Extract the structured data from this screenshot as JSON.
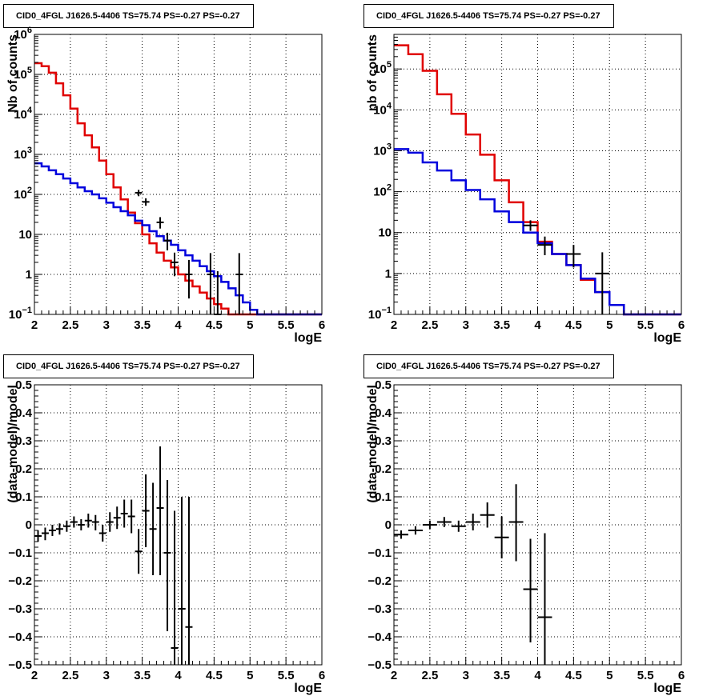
{
  "chart_data": [
    {
      "type": "line",
      "title": "CID0_4FGL J1626.5-4406 TS=75.74 PS=-0.27 PS=-0.27",
      "xlabel": "logE",
      "ylabel": "Nb of counts",
      "xlim": [
        2,
        6
      ],
      "ylim": [
        0.1,
        1000000
      ],
      "log_y": true,
      "grid": true,
      "x_ticks": [
        "2",
        "2.5",
        "3",
        "3.5",
        "4",
        "4.5",
        "5",
        "5.5",
        "6"
      ],
      "y_ticks": [
        {
          "value": 0.1,
          "base": "10",
          "exp": "−1"
        },
        {
          "value": 1,
          "label": "1"
        },
        {
          "value": 10,
          "label": "10"
        },
        {
          "value": 100,
          "base": "10",
          "exp": "2"
        },
        {
          "value": 1000,
          "base": "10",
          "exp": "3"
        },
        {
          "value": 10000,
          "base": "10",
          "exp": "4"
        },
        {
          "value": 100000,
          "base": "10",
          "exp": "5"
        },
        {
          "value": 1000000,
          "base": "10",
          "exp": "6"
        }
      ],
      "bin_edges": [
        2.0,
        2.1,
        2.2,
        2.3,
        2.4,
        2.5,
        2.6,
        2.7,
        2.8,
        2.9,
        3.0,
        3.1,
        3.2,
        3.3,
        3.4,
        3.5,
        3.6,
        3.7,
        3.8,
        3.9,
        4.0,
        4.1,
        4.2,
        4.3,
        4.4,
        4.5,
        4.6,
        4.7,
        4.8,
        4.9,
        5.0,
        5.1,
        5.2,
        5.3,
        5.4,
        5.5,
        5.6,
        5.7,
        5.8,
        5.9,
        6.0
      ],
      "series": [
        {
          "color": "#e00000",
          "style": "step",
          "values": [
            190000,
            160000,
            110000,
            60000,
            30000,
            14000,
            6000,
            3000,
            1500,
            700,
            320,
            150,
            75,
            35,
            19,
            10,
            6,
            3.5,
            2.2,
            1.5,
            1.0,
            0.7,
            0.5,
            0.35,
            0.25,
            0.18,
            0.14,
            0.1,
            0.1,
            0.1,
            0.1,
            0.1,
            0.1,
            0.1,
            0.1,
            0.1,
            0.1,
            0.1,
            0.1,
            0.1
          ]
        },
        {
          "color": "#0000dd",
          "style": "step",
          "values": [
            600,
            500,
            400,
            320,
            250,
            190,
            150,
            120,
            100,
            80,
            62,
            48,
            38,
            30,
            22,
            17,
            12,
            9,
            7,
            5.5,
            4,
            3,
            2.2,
            1.6,
            1.2,
            0.9,
            0.65,
            0.45,
            0.3,
            0.2,
            0.13,
            0.1,
            0.1,
            0.1,
            0.1,
            0.1,
            0.1,
            0.1,
            0.1,
            0.1
          ]
        },
        {
          "color": "#000000",
          "style": "errorbar",
          "points": [
            {
              "x": 3.45,
              "y": 110,
              "lo": 90,
              "hi": 130
            },
            {
              "x": 3.55,
              "y": 65,
              "lo": 52,
              "hi": 80
            },
            {
              "x": 3.75,
              "y": 20,
              "lo": 14,
              "hi": 27
            },
            {
              "x": 3.85,
              "y": 7,
              "lo": 4,
              "hi": 11
            },
            {
              "x": 3.95,
              "y": 2,
              "lo": 0.9,
              "hi": 3.5
            },
            {
              "x": 4.15,
              "y": 1,
              "lo": 0.25,
              "hi": 2.3
            },
            {
              "x": 4.45,
              "y": 1,
              "lo": 0.1,
              "hi": 3.4
            },
            {
              "x": 4.55,
              "y": 0.1,
              "lo": 0.1,
              "hi": 1.2
            },
            {
              "x": 4.85,
              "y": 1,
              "lo": 0.1,
              "hi": 3.4
            }
          ]
        }
      ]
    },
    {
      "type": "line",
      "title": "CID0_4FGL J1626.5-4406 TS=75.74 PS=-0.27 PS=-0.27",
      "xlabel": "logE",
      "ylabel": "nb of counts",
      "xlim": [
        2,
        6
      ],
      "ylim": [
        0.1,
        700000
      ],
      "log_y": true,
      "grid": true,
      "x_ticks": [
        "2",
        "2.5",
        "3",
        "3.5",
        "4",
        "4.5",
        "5",
        "5.5",
        "6"
      ],
      "y_ticks": [
        {
          "value": 0.1,
          "base": "10",
          "exp": "−1"
        },
        {
          "value": 1,
          "label": "1"
        },
        {
          "value": 10,
          "label": "10"
        },
        {
          "value": 100,
          "base": "10",
          "exp": "2"
        },
        {
          "value": 1000,
          "base": "10",
          "exp": "3"
        },
        {
          "value": 10000,
          "base": "10",
          "exp": "4"
        },
        {
          "value": 100000,
          "base": "10",
          "exp": "5"
        }
      ],
      "bin_edges": [
        2.0,
        2.2,
        2.4,
        2.6,
        2.8,
        3.0,
        3.2,
        3.4,
        3.6,
        3.8,
        4.0,
        4.2,
        4.4,
        4.6,
        4.8,
        5.0,
        5.2,
        5.4,
        5.6,
        5.8,
        6.0
      ],
      "series": [
        {
          "color": "#e00000",
          "style": "step",
          "values": [
            380000,
            230000,
            90000,
            24000,
            8000,
            2500,
            800,
            190,
            55,
            18,
            6,
            3,
            1.6,
            0.7,
            0.35,
            0.17,
            0.1,
            0.1,
            0.1,
            0.1
          ]
        },
        {
          "color": "#0000dd",
          "style": "step",
          "values": [
            1100,
            900,
            520,
            330,
            190,
            110,
            65,
            33,
            18,
            10,
            5.5,
            3,
            1.6,
            0.75,
            0.35,
            0.17,
            0.1,
            0.1,
            0.1,
            0.1
          ]
        },
        {
          "color": "#000000",
          "style": "errorbar",
          "points": [
            {
              "x": 3.9,
              "y": 15,
              "lo": 11,
              "hi": 20
            },
            {
              "x": 4.1,
              "y": 5,
              "lo": 2.8,
              "hi": 8
            },
            {
              "x": 4.5,
              "y": 3,
              "lo": 1.4,
              "hi": 5
            },
            {
              "x": 4.9,
              "y": 1,
              "lo": 0.1,
              "hi": 3.3
            }
          ]
        }
      ]
    },
    {
      "type": "scatter",
      "title": "CID0_4FGL J1626.5-4406 TS=75.74 PS=-0.27 PS=-0.27",
      "xlabel": "logE",
      "ylabel": "(data-model)/model",
      "xlim": [
        2,
        6
      ],
      "ylim": [
        -0.5,
        0.5
      ],
      "log_y": false,
      "grid": true,
      "x_ticks": [
        "2",
        "2.5",
        "3",
        "3.5",
        "4",
        "4.5",
        "5",
        "5.5",
        "6"
      ],
      "y_ticks": [
        {
          "value": -0.5,
          "label": "−0.5"
        },
        {
          "value": -0.4,
          "label": "−0.4"
        },
        {
          "value": -0.3,
          "label": "−0.3"
        },
        {
          "value": -0.2,
          "label": "−0.2"
        },
        {
          "value": -0.1,
          "label": "−0.1"
        },
        {
          "value": 0,
          "label": "0"
        },
        {
          "value": 0.1,
          "label": "0.1"
        },
        {
          "value": 0.2,
          "label": "0.2"
        },
        {
          "value": 0.3,
          "label": "0.3"
        },
        {
          "value": 0.4,
          "label": "0.4"
        },
        {
          "value": 0.5,
          "label": "0.5"
        }
      ],
      "series": [
        {
          "color": "#000000",
          "style": "errorbar",
          "xerr": 0.05,
          "points": [
            {
              "x": 2.05,
              "y": -0.04,
              "lo": -0.06,
              "hi": -0.02
            },
            {
              "x": 2.15,
              "y": -0.03,
              "lo": -0.055,
              "hi": -0.01
            },
            {
              "x": 2.25,
              "y": -0.02,
              "lo": -0.04,
              "hi": 0.0
            },
            {
              "x": 2.35,
              "y": -0.015,
              "lo": -0.035,
              "hi": 0.005
            },
            {
              "x": 2.45,
              "y": -0.005,
              "lo": -0.025,
              "hi": 0.015
            },
            {
              "x": 2.55,
              "y": 0.01,
              "lo": -0.01,
              "hi": 0.03
            },
            {
              "x": 2.65,
              "y": 0.0,
              "lo": -0.02,
              "hi": 0.02
            },
            {
              "x": 2.75,
              "y": 0.015,
              "lo": -0.01,
              "hi": 0.04
            },
            {
              "x": 2.85,
              "y": 0.01,
              "lo": -0.02,
              "hi": 0.035
            },
            {
              "x": 2.95,
              "y": -0.03,
              "lo": -0.06,
              "hi": 0.0
            },
            {
              "x": 3.05,
              "y": 0.01,
              "lo": -0.025,
              "hi": 0.045
            },
            {
              "x": 3.15,
              "y": 0.025,
              "lo": -0.015,
              "hi": 0.065
            },
            {
              "x": 3.25,
              "y": 0.04,
              "lo": -0.01,
              "hi": 0.09
            },
            {
              "x": 3.35,
              "y": 0.03,
              "lo": -0.03,
              "hi": 0.09
            },
            {
              "x": 3.45,
              "y": -0.095,
              "lo": -0.175,
              "hi": -0.015
            },
            {
              "x": 3.55,
              "y": 0.05,
              "lo": -0.08,
              "hi": 0.18
            },
            {
              "x": 3.65,
              "y": -0.015,
              "lo": -0.18,
              "hi": 0.15
            },
            {
              "x": 3.75,
              "y": 0.06,
              "lo": -0.18,
              "hi": 0.28
            },
            {
              "x": 3.85,
              "y": -0.1,
              "lo": -0.38,
              "hi": 0.16
            },
            {
              "x": 3.95,
              "y": -0.44,
              "lo": -0.5,
              "hi": 0.05
            },
            {
              "x": 4.05,
              "y": -0.3,
              "lo": -0.5,
              "hi": 0.1
            },
            {
              "x": 4.15,
              "y": -0.365,
              "lo": -0.5,
              "hi": 0.1
            }
          ]
        }
      ]
    },
    {
      "type": "scatter",
      "title": "CID0_4FGL J1626.5-4406 TS=75.74 PS=-0.27 PS=-0.27",
      "xlabel": "logE",
      "ylabel": "(data-model)/model",
      "xlim": [
        2,
        6
      ],
      "ylim": [
        -0.5,
        0.5
      ],
      "log_y": false,
      "grid": true,
      "x_ticks": [
        "2",
        "2.5",
        "3",
        "3.5",
        "4",
        "4.5",
        "5",
        "5.5",
        "6"
      ],
      "y_ticks": [
        {
          "value": -0.5,
          "label": "−0.5"
        },
        {
          "value": -0.4,
          "label": "−0.4"
        },
        {
          "value": -0.3,
          "label": "−0.3"
        },
        {
          "value": -0.2,
          "label": "−0.2"
        },
        {
          "value": -0.1,
          "label": "−0.1"
        },
        {
          "value": 0,
          "label": "0"
        },
        {
          "value": 0.1,
          "label": "0.1"
        },
        {
          "value": 0.2,
          "label": "0.2"
        },
        {
          "value": 0.3,
          "label": "0.3"
        },
        {
          "value": 0.4,
          "label": "0.4"
        },
        {
          "value": 0.5,
          "label": "0.5"
        }
      ],
      "series": [
        {
          "color": "#000000",
          "style": "errorbar",
          "xerr": 0.1,
          "points": [
            {
              "x": 2.1,
              "y": -0.035,
              "lo": -0.05,
              "hi": -0.02
            },
            {
              "x": 2.3,
              "y": -0.02,
              "lo": -0.035,
              "hi": -0.005
            },
            {
              "x": 2.5,
              "y": 0.0,
              "lo": -0.015,
              "hi": 0.015
            },
            {
              "x": 2.7,
              "y": 0.01,
              "lo": -0.008,
              "hi": 0.028
            },
            {
              "x": 2.9,
              "y": -0.005,
              "lo": -0.025,
              "hi": 0.015
            },
            {
              "x": 3.1,
              "y": 0.01,
              "lo": -0.02,
              "hi": 0.04
            },
            {
              "x": 3.3,
              "y": 0.035,
              "lo": -0.01,
              "hi": 0.08
            },
            {
              "x": 3.5,
              "y": -0.045,
              "lo": -0.12,
              "hi": 0.03
            },
            {
              "x": 3.7,
              "y": 0.01,
              "lo": -0.13,
              "hi": 0.145
            },
            {
              "x": 3.9,
              "y": -0.23,
              "lo": -0.42,
              "hi": -0.05
            },
            {
              "x": 4.1,
              "y": -0.33,
              "lo": -0.5,
              "hi": -0.03
            }
          ]
        }
      ]
    }
  ]
}
